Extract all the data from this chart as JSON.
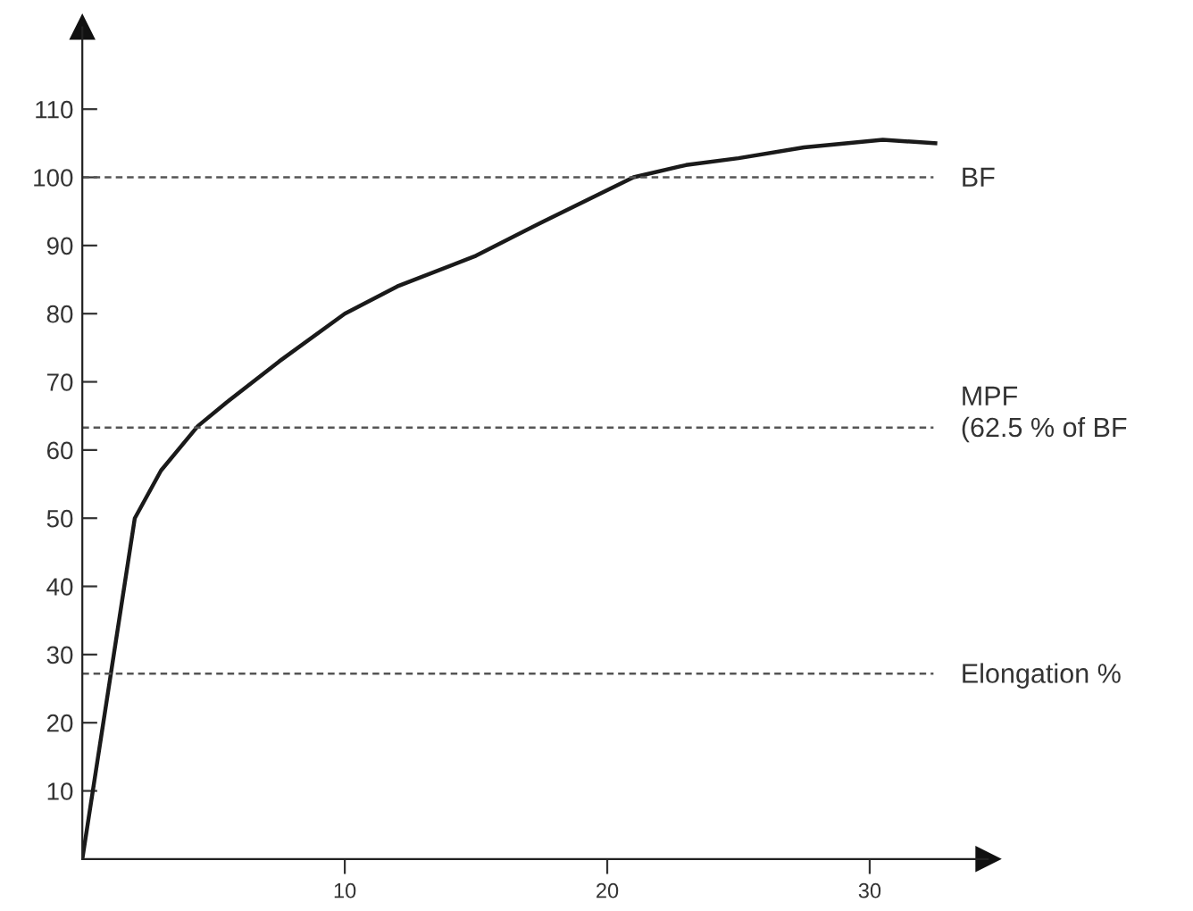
{
  "chart_data": {
    "type": "line",
    "x": [
      0,
      2,
      3,
      4.4,
      5.5,
      7.5,
      10,
      12,
      15,
      17.5,
      21,
      23,
      25,
      27.5,
      30.5,
      32.5
    ],
    "series": [
      {
        "color": "#1a1a1a",
        "values": [
          0,
          50,
          57,
          63.5,
          67,
          73,
          80,
          84,
          88.5,
          93.4,
          100,
          101.8,
          102.8,
          104.4,
          105.5,
          105
        ]
      }
    ],
    "xlim": [
      0,
      34.5
    ],
    "ylim": [
      0,
      122
    ],
    "xticks": [
      10,
      20,
      30
    ],
    "yticks": [
      10,
      20,
      30,
      40,
      50,
      60,
      70,
      80,
      90,
      100,
      110
    ],
    "ref_lines": [
      {
        "axis": "y",
        "value": 100,
        "label": "BF",
        "color": "#555555",
        "line_style": "dashed"
      },
      {
        "axis": "y",
        "value": 63.3,
        "label": "MPF\n(62.5 % of BF",
        "color": "#555555",
        "line_style": "dashed"
      },
      {
        "axis": "y",
        "value": 27.2,
        "label": "Elongation %",
        "color": "#555555",
        "line_style": "dashed"
      }
    ],
    "grid": false,
    "legend": false,
    "marker": "none",
    "line_style": "solid"
  }
}
